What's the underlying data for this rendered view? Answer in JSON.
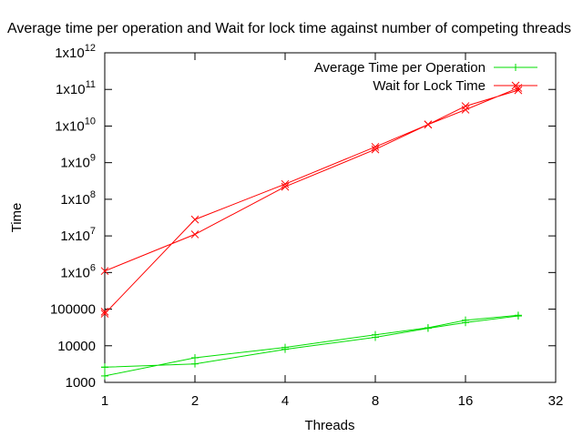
{
  "chart_data": {
    "type": "line",
    "title": "Average time per operation and Wait for lock time against number of competing threads",
    "xlabel": "Threads",
    "ylabel": "Time",
    "x_scale": "log2",
    "y_scale": "log10",
    "xlim": [
      1,
      32
    ],
    "ylim": [
      1000,
      1000000000000
    ],
    "x_ticks": [
      {
        "value": 1,
        "label": "1"
      },
      {
        "value": 2,
        "label": "2"
      },
      {
        "value": 4,
        "label": "4"
      },
      {
        "value": 8,
        "label": "8"
      },
      {
        "value": 16,
        "label": "16"
      },
      {
        "value": 32,
        "label": "32"
      }
    ],
    "y_ticks": [
      {
        "value": 1000,
        "base": "1000",
        "exp": ""
      },
      {
        "value": 10000,
        "base": "10000",
        "exp": ""
      },
      {
        "value": 100000,
        "base": "100000",
        "exp": ""
      },
      {
        "value": 1000000,
        "base": "1x10",
        "exp": "6"
      },
      {
        "value": 10000000,
        "base": "1x10",
        "exp": "7"
      },
      {
        "value": 100000000,
        "base": "1x10",
        "exp": "8"
      },
      {
        "value": 1000000000,
        "base": "1x10",
        "exp": "9"
      },
      {
        "value": 10000000000,
        "base": "1x10",
        "exp": "10"
      },
      {
        "value": 100000000000,
        "base": "1x10",
        "exp": "11"
      },
      {
        "value": 1000000000000,
        "base": "1x10",
        "exp": "12"
      }
    ],
    "legend_position": "top-right",
    "grid": false,
    "series": [
      {
        "name": "Average Time per Operation",
        "color": "#00dd00",
        "marker": "plus",
        "x": [
          1,
          2,
          4,
          8,
          12,
          16,
          24,
          24,
          16,
          12,
          8,
          4,
          2,
          1,
          1
        ],
        "y": [
          2600,
          3200,
          8000,
          17000,
          30000,
          43000,
          65000,
          68000,
          50000,
          31000,
          20000,
          9000,
          4700,
          1500,
          2600
        ]
      },
      {
        "name": "Wait for Lock Time",
        "color": "#ff0000",
        "marker": "cross",
        "x": [
          1,
          2,
          4,
          8,
          12,
          16,
          24,
          24,
          16,
          12,
          8,
          4,
          2,
          1,
          1
        ],
        "y": [
          1100000,
          11000000,
          220000000,
          2300000000,
          11000000000,
          28000000000,
          110000000000,
          95000000000,
          35000000000,
          11000000000,
          2700000000,
          260000000,
          28000000,
          75000,
          85000
        ]
      }
    ]
  }
}
